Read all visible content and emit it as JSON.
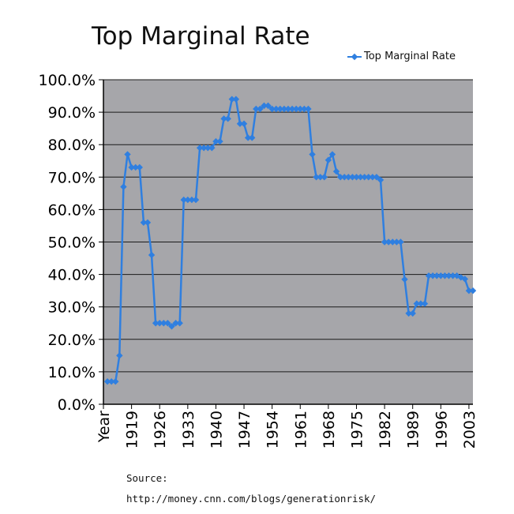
{
  "chart_data": {
    "type": "line",
    "title": "Top Marginal Rate",
    "legend": {
      "entries": [
        "Top Marginal Rate"
      ],
      "position": "top-right"
    },
    "series": [
      {
        "name": "Top Marginal Rate",
        "color": "#2f7fe0",
        "x": [
          1913,
          1914,
          1915,
          1916,
          1917,
          1918,
          1919,
          1920,
          1921,
          1922,
          1923,
          1924,
          1925,
          1926,
          1927,
          1928,
          1929,
          1930,
          1931,
          1932,
          1933,
          1934,
          1935,
          1936,
          1937,
          1938,
          1939,
          1940,
          1941,
          1942,
          1943,
          1944,
          1945,
          1946,
          1947,
          1948,
          1949,
          1950,
          1951,
          1952,
          1953,
          1954,
          1955,
          1956,
          1957,
          1958,
          1959,
          1960,
          1961,
          1962,
          1963,
          1964,
          1965,
          1966,
          1967,
          1968,
          1969,
          1970,
          1971,
          1972,
          1973,
          1974,
          1975,
          1976,
          1977,
          1978,
          1979,
          1980,
          1981,
          1982,
          1983,
          1984,
          1985,
          1986,
          1987,
          1988,
          1989,
          1990,
          1991,
          1992,
          1993,
          1994,
          1995,
          1996,
          1997,
          1998,
          1999,
          2000,
          2001,
          2002,
          2003,
          2004
        ],
        "y": [
          7,
          7,
          7,
          15,
          67,
          77,
          73,
          73,
          73,
          56,
          56,
          46,
          25,
          25,
          25,
          25,
          24,
          25,
          25,
          63,
          63,
          63,
          63,
          79,
          79,
          79,
          79,
          81,
          81,
          88,
          88,
          94,
          94,
          86.45,
          86.45,
          82.13,
          82.13,
          91,
          91,
          92,
          92,
          91,
          91,
          91,
          91,
          91,
          91,
          91,
          91,
          91,
          91,
          77,
          70,
          70,
          70,
          75.25,
          77,
          71.75,
          70,
          70,
          70,
          70,
          70,
          70,
          70,
          70,
          70,
          70,
          69.125,
          50,
          50,
          50,
          50,
          50,
          38.5,
          28,
          28,
          31,
          31,
          31,
          39.6,
          39.6,
          39.6,
          39.6,
          39.6,
          39.6,
          39.6,
          39.6,
          39.1,
          38.6,
          35,
          35
        ]
      }
    ],
    "xlabel": "",
    "ylabel": "",
    "x_tick_labels": [
      "Year",
      "1919",
      "1926",
      "1933",
      "1940",
      "1947",
      "1954",
      "1961",
      "1968",
      "1975",
      "1982",
      "1989",
      "1996",
      "2003"
    ],
    "x_tick_values": [
      1912,
      1919,
      1926,
      1933,
      1940,
      1947,
      1954,
      1961,
      1968,
      1975,
      1982,
      1989,
      1996,
      2003
    ],
    "xlim": [
      1912,
      2004
    ],
    "y_tick_labels": [
      "0.0%",
      "10.0%",
      "20.0%",
      "30.0%",
      "40.0%",
      "50.0%",
      "60.0%",
      "70.0%",
      "80.0%",
      "90.0%",
      "100.0%"
    ],
    "y_tick_values": [
      0,
      10,
      20,
      30,
      40,
      50,
      60,
      70,
      80,
      90,
      100
    ],
    "ylim": [
      0,
      100
    ],
    "grid": true,
    "plot_background": "#a6a6aa"
  },
  "footer": {
    "source_label": "Source:",
    "source_url": "http://money.cnn.com/blogs/generationrisk/"
  }
}
